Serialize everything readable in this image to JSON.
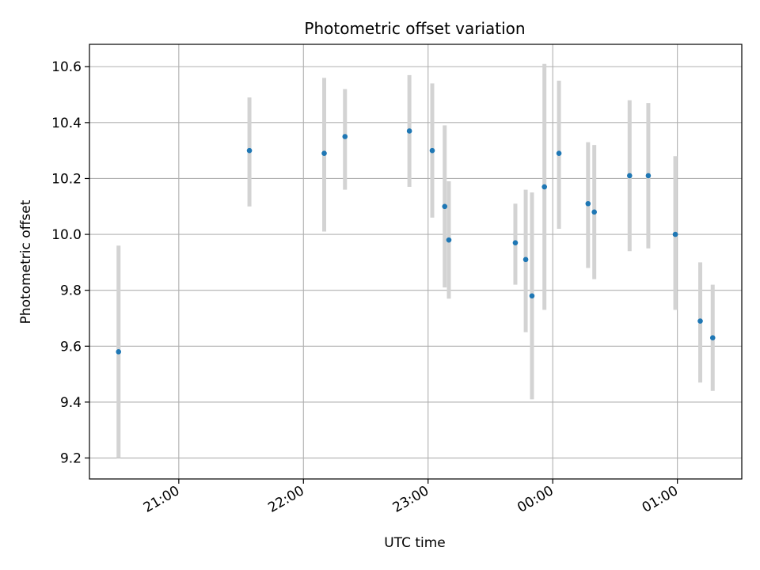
{
  "chart_data": {
    "type": "scatter",
    "title": "Photometric offset variation",
    "xlabel": "UTC time",
    "ylabel": "Photometric offset",
    "grid": true,
    "legend": "none",
    "x_axis_type": "time",
    "xlim": [
      "20:17",
      "01:31"
    ],
    "ylim": [
      9.125,
      10.68
    ],
    "x_ticks": [
      "21:00",
      "22:00",
      "23:00",
      "00:00",
      "01:00"
    ],
    "y_ticks": [
      "9.2",
      "9.4",
      "9.6",
      "9.8",
      "10.0",
      "10.2",
      "10.4",
      "10.6"
    ],
    "colors": {
      "marker": "#1f77b4",
      "errorbar": "#d3d3d3",
      "grid": "#b0b0b0",
      "axes": "#000000"
    },
    "series": [
      {
        "points": [
          {
            "x": "20:31",
            "y": 9.58,
            "ylo": 9.2,
            "yhi": 9.96
          },
          {
            "x": "21:34",
            "y": 10.3,
            "ylo": 10.1,
            "yhi": 10.49
          },
          {
            "x": "22:10",
            "y": 10.29,
            "ylo": 10.01,
            "yhi": 10.56
          },
          {
            "x": "22:20",
            "y": 10.35,
            "ylo": 10.16,
            "yhi": 10.52
          },
          {
            "x": "22:51",
            "y": 10.37,
            "ylo": 10.17,
            "yhi": 10.57
          },
          {
            "x": "23:02",
            "y": 10.3,
            "ylo": 10.06,
            "yhi": 10.54
          },
          {
            "x": "23:08",
            "y": 10.1,
            "ylo": 9.81,
            "yhi": 10.39
          },
          {
            "x": "23:10",
            "y": 9.98,
            "ylo": 9.77,
            "yhi": 10.19
          },
          {
            "x": "23:42",
            "y": 9.97,
            "ylo": 9.82,
            "yhi": 10.11
          },
          {
            "x": "23:47",
            "y": 9.91,
            "ylo": 9.65,
            "yhi": 10.16
          },
          {
            "x": "23:50",
            "y": 9.78,
            "ylo": 9.41,
            "yhi": 10.15
          },
          {
            "x": "23:56",
            "y": 10.17,
            "ylo": 9.73,
            "yhi": 10.61
          },
          {
            "x": "00:03",
            "y": 10.29,
            "ylo": 10.02,
            "yhi": 10.55
          },
          {
            "x": "00:17",
            "y": 10.11,
            "ylo": 9.88,
            "yhi": 10.33
          },
          {
            "x": "00:20",
            "y": 10.08,
            "ylo": 9.84,
            "yhi": 10.32
          },
          {
            "x": "00:37",
            "y": 10.21,
            "ylo": 9.94,
            "yhi": 10.48
          },
          {
            "x": "00:46",
            "y": 10.21,
            "ylo": 9.95,
            "yhi": 10.47
          },
          {
            "x": "00:59",
            "y": 10.0,
            "ylo": 9.73,
            "yhi": 10.28
          },
          {
            "x": "01:11",
            "y": 9.69,
            "ylo": 9.47,
            "yhi": 9.9
          },
          {
            "x": "01:17",
            "y": 9.63,
            "ylo": 9.44,
            "yhi": 9.82
          }
        ]
      }
    ]
  }
}
